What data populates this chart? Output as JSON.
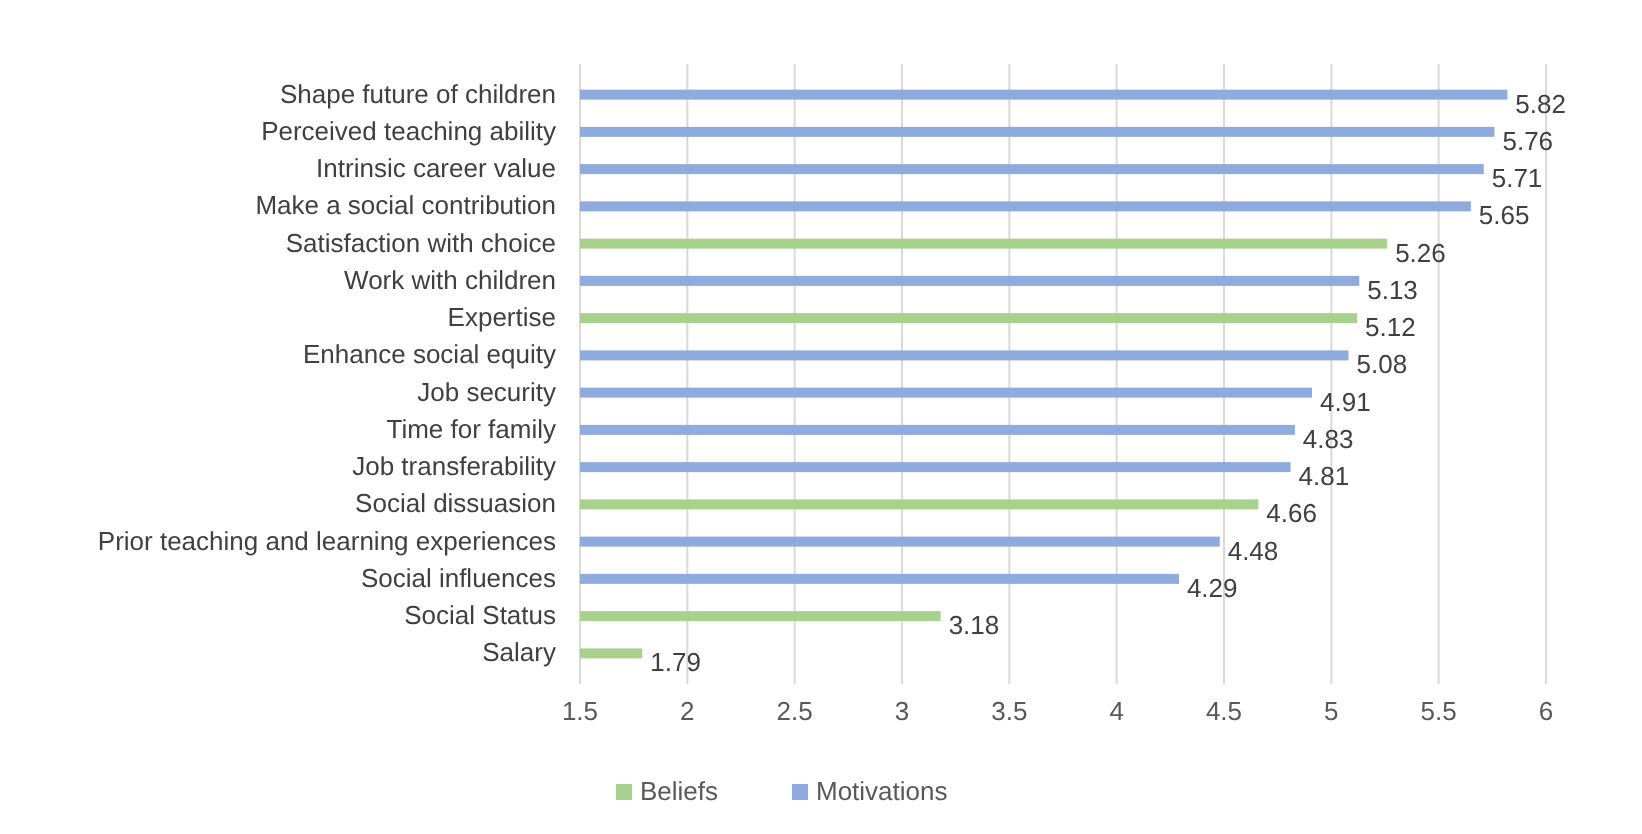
{
  "chart_data": {
    "type": "bar",
    "orientation": "horizontal",
    "categories": [
      "Shape future of children",
      "Perceived teaching ability",
      "Intrinsic career value",
      "Make a social contribution",
      "Satisfaction with choice",
      "Work with children",
      "Expertise",
      "Enhance social equity",
      "Job security",
      "Time for family",
      "Job transferability",
      "Social dissuasion",
      "Prior teaching and learning experiences",
      "Social influences",
      "Social Status",
      "Salary"
    ],
    "series": [
      {
        "name": "Beliefs",
        "color": "#a9d18e",
        "values": [
          null,
          null,
          null,
          null,
          5.26,
          null,
          5.12,
          null,
          null,
          null,
          null,
          4.66,
          null,
          null,
          3.18,
          1.79
        ]
      },
      {
        "name": "Motivations",
        "color": "#8faadc",
        "values": [
          5.82,
          5.76,
          5.71,
          5.65,
          null,
          5.13,
          null,
          5.08,
          4.91,
          4.83,
          4.81,
          null,
          4.48,
          4.29,
          null,
          null
        ]
      }
    ],
    "xlim": [
      1.5,
      6
    ],
    "xticks": [
      1.5,
      2,
      2.5,
      3,
      3.5,
      4,
      4.5,
      5,
      5.5,
      6
    ],
    "grid": "x",
    "legend": "bottom",
    "data_labels": true
  }
}
